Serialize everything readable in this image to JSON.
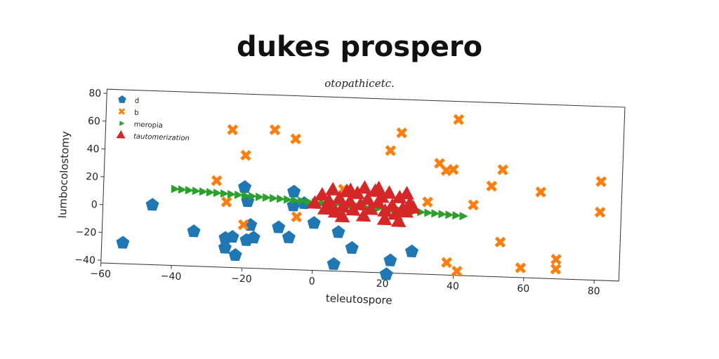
{
  "title": "dukes prospero",
  "subtitle": "otopathicetc.",
  "chart_data": {
    "type": "scatter",
    "xlabel": "teleutospore",
    "ylabel": "lumbocolostomy",
    "xlim": [
      -60,
      87
    ],
    "ylim": [
      -42,
      83
    ],
    "xticks": [
      -60,
      -40,
      -20,
      0,
      20,
      40,
      60,
      80
    ],
    "yticks": [
      -40,
      -20,
      0,
      20,
      40,
      60,
      80
    ],
    "grid": false,
    "legend_position": "top-left",
    "series": [
      {
        "name": "d",
        "marker": "pentagon",
        "color": "#1f77b4",
        "points": [
          [
            -54,
            -27
          ],
          [
            -46,
            1
          ],
          [
            -34,
            -17
          ],
          [
            -25,
            -28
          ],
          [
            -25,
            -21
          ],
          [
            -23,
            -20
          ],
          [
            -22,
            -33
          ],
          [
            -20,
            16
          ],
          [
            -19,
            -22
          ],
          [
            -19,
            6
          ],
          [
            -18,
            -11
          ],
          [
            -17,
            -20
          ],
          [
            -10,
            -12
          ],
          [
            -7,
            -19
          ],
          [
            -6,
            14
          ],
          [
            -6,
            4
          ],
          [
            -3,
            6
          ],
          [
            0,
            -8
          ],
          [
            7,
            -14
          ],
          [
            6,
            -37
          ],
          [
            11,
            -25
          ],
          [
            21,
            -43
          ],
          [
            22,
            -33
          ],
          [
            28,
            -26
          ]
        ]
      },
      {
        "name": "b",
        "marker": "x",
        "color": "#ff7f0e",
        "points": [
          [
            -24,
            57
          ],
          [
            -28,
            20
          ],
          [
            -25,
            5
          ],
          [
            -12,
            58
          ],
          [
            -6,
            52
          ],
          [
            -20,
            39
          ],
          [
            -20,
            -11
          ],
          [
            -5,
            -4
          ],
          [
            8,
            17
          ],
          [
            21,
            46
          ],
          [
            24,
            59
          ],
          [
            32,
            10
          ],
          [
            35,
            38
          ],
          [
            37,
            33
          ],
          [
            39,
            34
          ],
          [
            40,
            70
          ],
          [
            45,
            9
          ],
          [
            50,
            23
          ],
          [
            53,
            35
          ],
          [
            53,
            -17
          ],
          [
            38,
            -33
          ],
          [
            41,
            -39
          ],
          [
            59,
            -35
          ],
          [
            64,
            20
          ],
          [
            69,
            -35
          ],
          [
            69,
            -28
          ],
          [
            81,
            29
          ],
          [
            81,
            7
          ]
        ]
      },
      {
        "name": "meropia",
        "marker": "triangle-right",
        "color": "#2ca02c",
        "points": [
          [
            -40,
            13
          ],
          [
            -38,
            12.7
          ],
          [
            -36,
            12.4
          ],
          [
            -34,
            12.1
          ],
          [
            -32,
            11.8
          ],
          [
            -30,
            11.5
          ],
          [
            -28,
            11.2
          ],
          [
            -26,
            10.9
          ],
          [
            -24,
            10.6
          ],
          [
            -22,
            10.3
          ],
          [
            -20,
            10
          ],
          [
            -18,
            9.7
          ],
          [
            -16,
            9.4
          ],
          [
            -14,
            9.1
          ],
          [
            -12,
            8.8
          ],
          [
            -10,
            8.5
          ],
          [
            -8,
            8.2
          ],
          [
            -6,
            7.9
          ],
          [
            -4,
            7.6
          ],
          [
            -2,
            7.3
          ],
          [
            0,
            7
          ],
          [
            2,
            6.7
          ],
          [
            4,
            6.4
          ],
          [
            6,
            6.1
          ],
          [
            8,
            5.8
          ],
          [
            10,
            5.5
          ],
          [
            12,
            5.2
          ],
          [
            14,
            4.9
          ],
          [
            16,
            4.6
          ],
          [
            18,
            4.3
          ],
          [
            20,
            4
          ],
          [
            22,
            3.7
          ],
          [
            24,
            3.4
          ],
          [
            26,
            3.1
          ],
          [
            28,
            2.8
          ],
          [
            30,
            2.5
          ],
          [
            32,
            2.2
          ],
          [
            34,
            1.9
          ],
          [
            36,
            1.6
          ],
          [
            38,
            1.3
          ],
          [
            40,
            1
          ],
          [
            42,
            0.7
          ]
        ]
      },
      {
        "name": "tautomerization",
        "marker": "triangle-up",
        "color": "#d62728",
        "points": [
          [
            0,
            6
          ],
          [
            2,
            12
          ],
          [
            3,
            2
          ],
          [
            4,
            8
          ],
          [
            5,
            16
          ],
          [
            6,
            0
          ],
          [
            7,
            10
          ],
          [
            8,
            4
          ],
          [
            9,
            15
          ],
          [
            10,
            8
          ],
          [
            11,
            2
          ],
          [
            12,
            14
          ],
          [
            13,
            6
          ],
          [
            14,
            18
          ],
          [
            15,
            10
          ],
          [
            16,
            3
          ],
          [
            17,
            16
          ],
          [
            18,
            8
          ],
          [
            19,
            12
          ],
          [
            20,
            2
          ],
          [
            21,
            15
          ],
          [
            22,
            6
          ],
          [
            23,
            0
          ],
          [
            24,
            12
          ],
          [
            25,
            4
          ],
          [
            26,
            15
          ],
          [
            27,
            8
          ],
          [
            28,
            5
          ],
          [
            8,
            -3
          ],
          [
            14,
            -2
          ],
          [
            20,
            -4
          ],
          [
            24,
            -5
          ],
          [
            26,
            2
          ],
          [
            4,
            4
          ],
          [
            10,
            16
          ],
          [
            18,
            18
          ]
        ]
      }
    ]
  }
}
